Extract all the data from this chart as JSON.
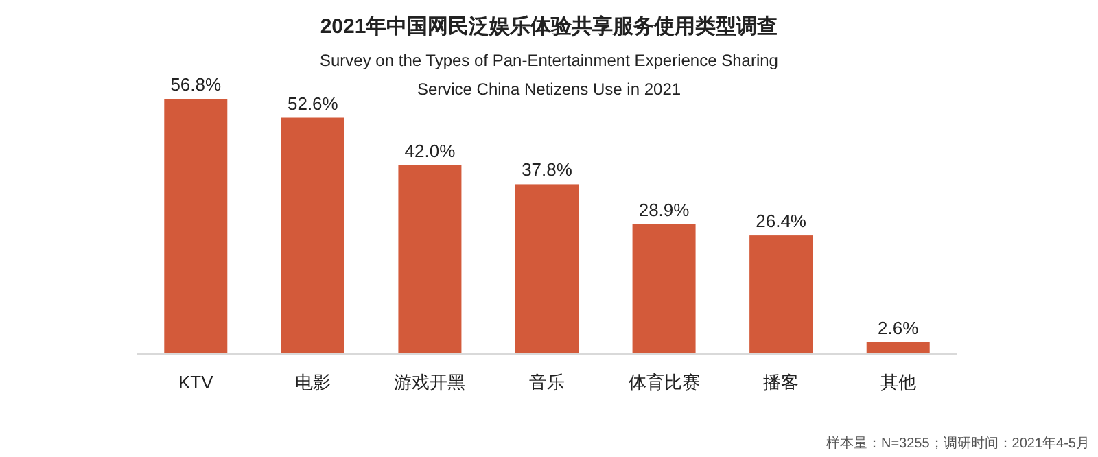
{
  "chart_data": {
    "type": "bar",
    "title": "2021年中国网民泛娱乐体验共享服务使用类型调查",
    "subtitle": "Survey on the Types of Pan-Entertainment Experience Sharing Service China Netizens Use in 2021",
    "categories": [
      "KTV",
      "电影",
      "游戏开黑",
      "音乐",
      "体育比赛",
      "播客",
      "其他"
    ],
    "values": [
      56.8,
      52.6,
      42.0,
      37.8,
      28.9,
      26.4,
      2.6
    ],
    "value_labels": [
      "56.8%",
      "52.6%",
      "42.0%",
      "37.8%",
      "28.9%",
      "26.4%",
      "2.6%"
    ],
    "color": "#d35a3a",
    "annotations": [
      "样本量：N=3255；调研时间：2021年4-5月"
    ]
  }
}
